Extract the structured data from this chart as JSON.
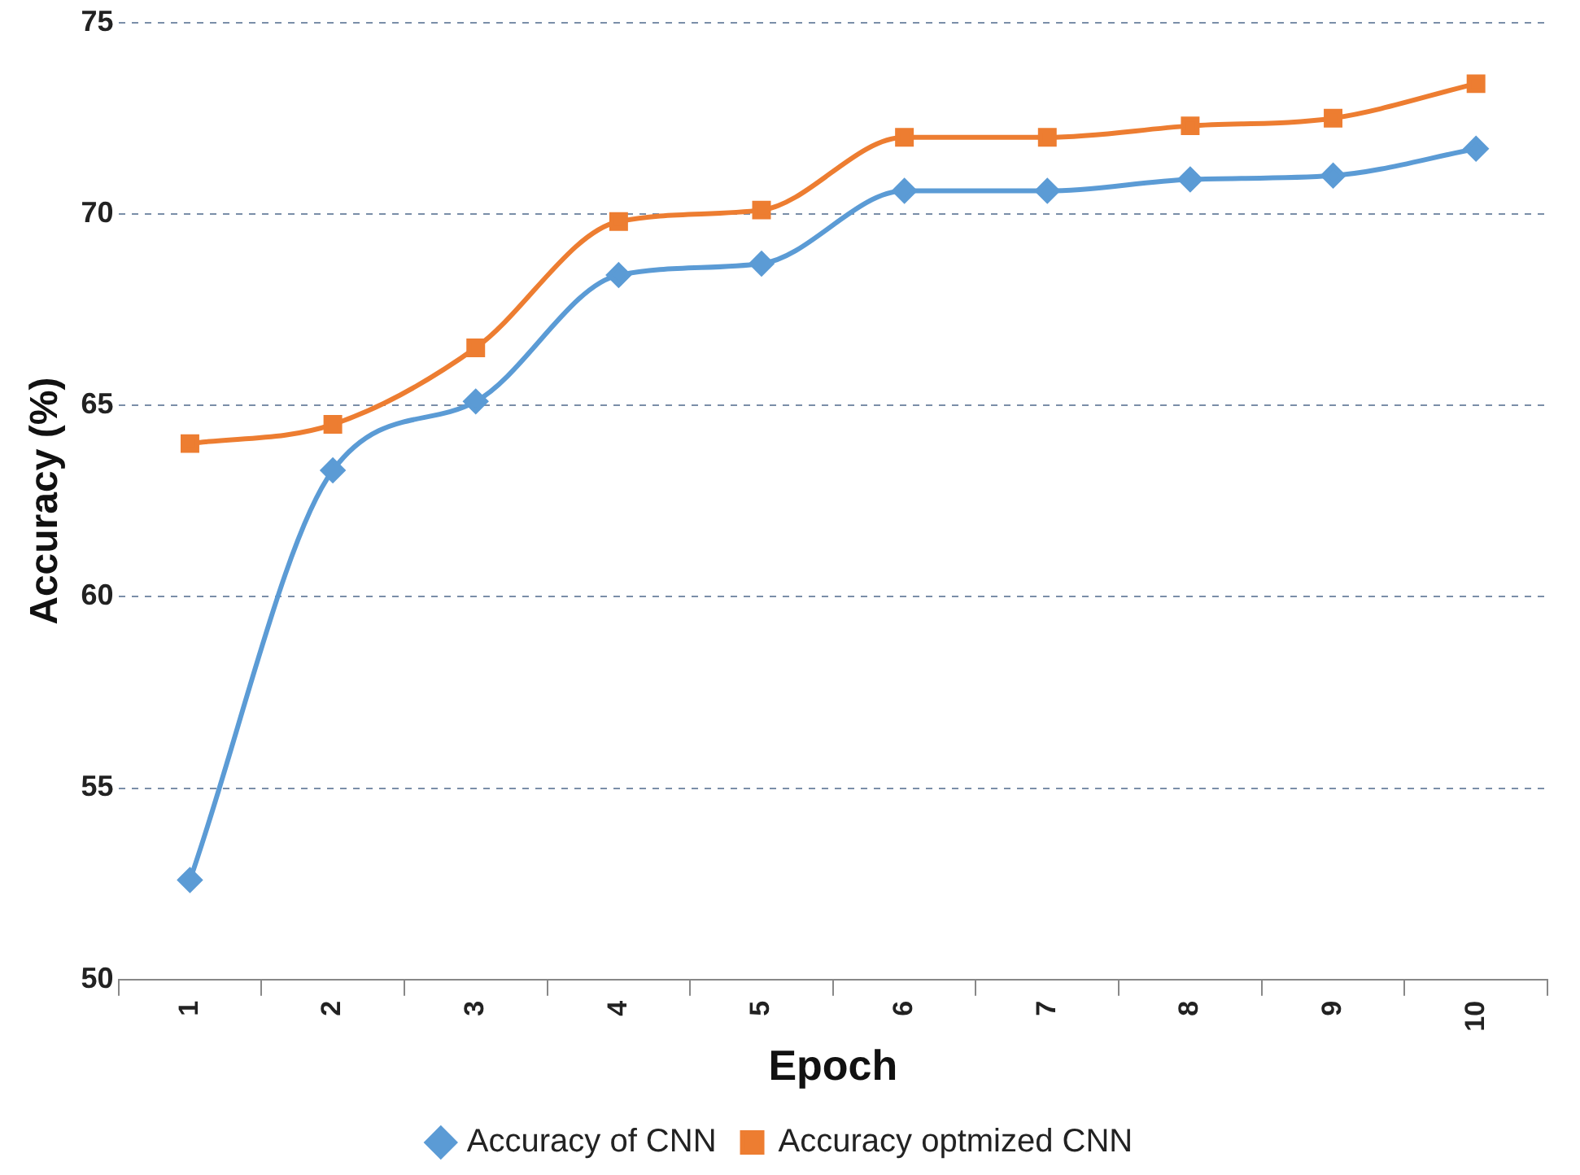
{
  "chart_data": {
    "type": "line",
    "xlabel": "Epoch",
    "ylabel": "Accuracy (%)",
    "categories": [
      "1",
      "2",
      "3",
      "4",
      "5",
      "6",
      "7",
      "8",
      "9",
      "10"
    ],
    "series": [
      {
        "name": "Accuracy of CNN",
        "color": "#5b9bd5",
        "marker": "diamond",
        "values": [
          52.6,
          63.3,
          65.1,
          68.4,
          68.7,
          70.6,
          70.6,
          70.9,
          71.0,
          71.7
        ]
      },
      {
        "name": "Accuracy optmized CNN",
        "color": "#ed7d31",
        "marker": "square",
        "values": [
          64.0,
          64.5,
          66.5,
          69.8,
          70.1,
          72.0,
          72.0,
          72.3,
          72.5,
          73.4
        ]
      }
    ],
    "ylim": [
      50,
      75
    ],
    "yticks": [
      50,
      55,
      60,
      65,
      70,
      75
    ],
    "grid": "y",
    "legend": "bottom",
    "line_style": "solid"
  }
}
